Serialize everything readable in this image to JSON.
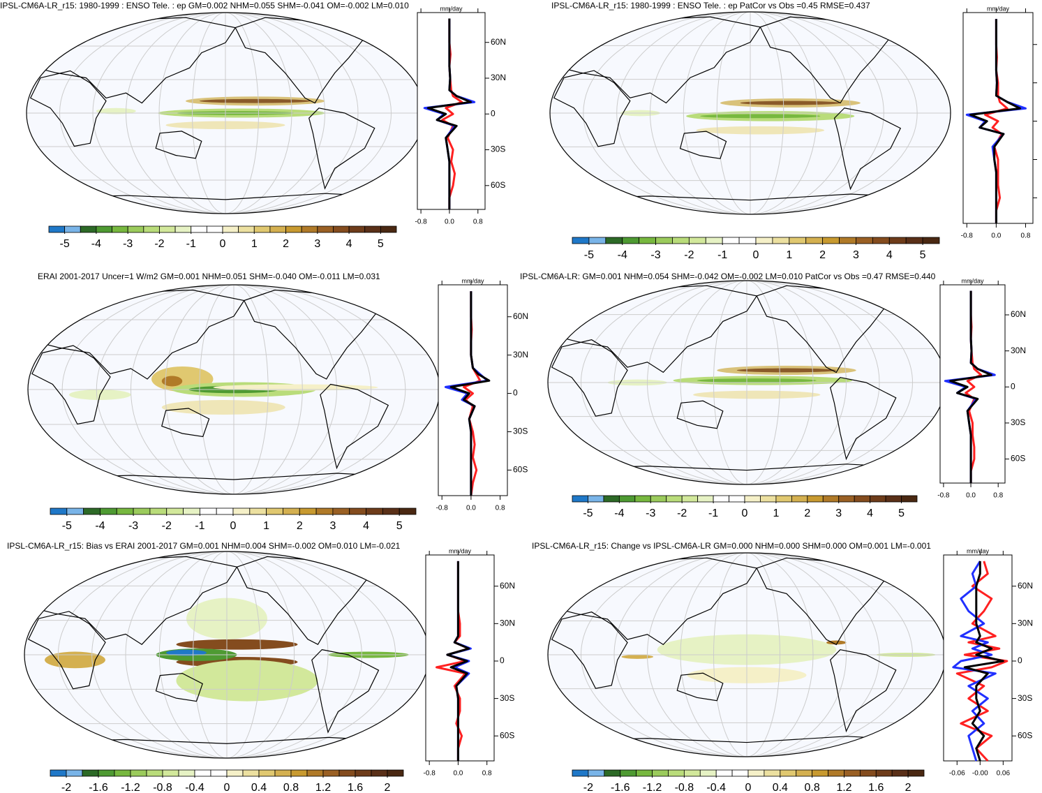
{
  "chart_data": [
    {
      "type": "map_zonal",
      "title": "IPSL-CM6A-LR_r15: 1980-1999 : ENSO Tele. : ep GM=0.002 NHM=0.055 SHM=-0.041 OM=-0.002 LM=0.010",
      "units": "mm/day",
      "colorbar": {
        "colors": [
          "#1f78c8",
          "#79b4e8",
          "#2d6a27",
          "#4e9a32",
          "#77b83f",
          "#9bcb5c",
          "#b9dc7a",
          "#d2e89b",
          "#e6f2c4",
          "#ffffff",
          "#ffffff",
          "#f5f0c8",
          "#ece0a0",
          "#e0c870",
          "#d4b050",
          "#c89a30",
          "#b07a28",
          "#9a6024",
          "#844c1e",
          "#6e3c1a",
          "#5a3018",
          "#4a2812"
        ],
        "ticks": [
          -5,
          -4,
          -3,
          -2,
          -1,
          0,
          1,
          2,
          3,
          4,
          5
        ]
      },
      "lat": [
        -80,
        -70,
        -60,
        -50,
        -40,
        -30,
        -20,
        -10,
        -5,
        0,
        5,
        10,
        15,
        20,
        30,
        40,
        50,
        60,
        70,
        80
      ],
      "series": [
        {
          "color": "#ff2020",
          "values": [
            0,
            0,
            0.1,
            0.15,
            0.05,
            0.1,
            -0.05,
            0.1,
            -0.2,
            0.1,
            -0.1,
            0.35,
            0.1,
            0.05,
            0.02,
            0,
            0.03,
            0,
            0,
            0
          ]
        },
        {
          "color": "#2030ff",
          "values": [
            0,
            0,
            0,
            0,
            0,
            -0.05,
            -0.1,
            0.15,
            -0.35,
            -0.15,
            -0.7,
            0.7,
            0.2,
            0,
            0.02,
            0,
            0,
            0,
            0,
            0
          ]
        },
        {
          "color": "#000000",
          "values": [
            0,
            0,
            0,
            0,
            0,
            -0.05,
            -0.1,
            0.2,
            -0.35,
            -0.1,
            -0.6,
            0.6,
            0.2,
            0,
            0.02,
            0,
            0,
            0,
            0,
            0
          ]
        }
      ],
      "xlim": [
        -0.9,
        1.0
      ],
      "xticks": [
        -0.8,
        {
          "value": 0,
          "label": "0.0"
        },
        0.8
      ],
      "ylim": [
        -80,
        85
      ],
      "yticks": [
        {
          "value": 60,
          "label": "60N"
        },
        {
          "value": 30,
          "label": "30N"
        },
        0,
        {
          "value": -30,
          "label": "30S"
        },
        {
          "value": -60,
          "label": "60S"
        }
      ],
      "ytick_labels": true
    },
    {
      "type": "map_zonal",
      "title": "IPSL-CM6A-LR_r15: 1980-1999 : ENSO Tele. : ep PatCor vs Obs =0.45 RMSE=0.437",
      "units": "mm/day",
      "colorbar": {
        "colors": [
          "#1f78c8",
          "#79b4e8",
          "#2d6a27",
          "#4e9a32",
          "#77b83f",
          "#9bcb5c",
          "#b9dc7a",
          "#d2e89b",
          "#e6f2c4",
          "#ffffff",
          "#ffffff",
          "#f5f0c8",
          "#ece0a0",
          "#e0c870",
          "#d4b050",
          "#c89a30",
          "#b07a28",
          "#9a6024",
          "#844c1e",
          "#6e3c1a",
          "#5a3018",
          "#4a2812"
        ],
        "ticks": [
          -5,
          -4,
          -3,
          -2,
          -1,
          0,
          1,
          2,
          3,
          4,
          5
        ]
      },
      "lat": [
        -80,
        -70,
        -60,
        -50,
        -40,
        -30,
        -20,
        -10,
        -5,
        0,
        5,
        10,
        15,
        20,
        30,
        40,
        50,
        60,
        70,
        80
      ],
      "series": [
        {
          "color": "#ff2020",
          "values": [
            0,
            0,
            0.1,
            0.05,
            0.05,
            0.05,
            -0.05,
            0.15,
            -0.1,
            0.05,
            -0.3,
            0.3,
            0.1,
            0.05,
            0.05,
            0,
            0.02,
            0,
            0,
            0
          ]
        },
        {
          "color": "#2030ff",
          "values": [
            0,
            0,
            0,
            0,
            0,
            -0.05,
            -0.1,
            0.2,
            -0.45,
            -0.3,
            -0.8,
            0.8,
            0.3,
            0,
            0.02,
            0,
            0,
            0,
            0,
            0
          ]
        },
        {
          "color": "#000000",
          "values": [
            0,
            0,
            0,
            0,
            0,
            -0.05,
            -0.05,
            0.2,
            -0.45,
            -0.25,
            -0.7,
            0.65,
            0.3,
            0,
            0.02,
            0,
            0,
            0,
            0,
            0
          ]
        }
      ],
      "xlim": [
        -0.9,
        1.0
      ],
      "xticks": [
        -0.8,
        {
          "value": 0,
          "label": "0.0"
        },
        0.8
      ],
      "ylim": [
        -80,
        85
      ],
      "yticks": [
        60,
        30,
        0,
        -30,
        -60
      ],
      "ytick_labels": false
    },
    {
      "type": "map_zonal",
      "title": "ERAI 2001-2017 Uncer=1 W/m2 GM=0.001 NHM=0.051 SHM=-0.040 OM=-0.011 LM=0.031",
      "units": "mm/day",
      "colorbar": {
        "colors": [
          "#1f78c8",
          "#79b4e8",
          "#2d6a27",
          "#4e9a32",
          "#77b83f",
          "#9bcb5c",
          "#b9dc7a",
          "#d2e89b",
          "#e6f2c4",
          "#ffffff",
          "#ffffff",
          "#f5f0c8",
          "#ece0a0",
          "#e0c870",
          "#d4b050",
          "#c89a30",
          "#b07a28",
          "#9a6024",
          "#844c1e",
          "#6e3c1a",
          "#5a3018",
          "#4a2812"
        ],
        "ticks": [
          -5,
          -4,
          -3,
          -2,
          -1,
          0,
          1,
          2,
          3,
          4,
          5
        ]
      },
      "lat": [
        -80,
        -70,
        -60,
        -50,
        -40,
        -30,
        -20,
        -10,
        -5,
        0,
        5,
        10,
        15,
        20,
        30,
        40,
        50,
        60,
        70,
        80
      ],
      "series": [
        {
          "color": "#ff2020",
          "values": [
            0,
            0.05,
            0.15,
            0.05,
            0.1,
            0.05,
            -0.05,
            0.05,
            -0.15,
            0.05,
            -0.2,
            0.25,
            0.15,
            0.05,
            0,
            0,
            0.02,
            0,
            0,
            0
          ]
        },
        {
          "color": "#2030ff",
          "values": [
            0,
            0,
            0,
            0,
            0,
            0,
            -0.05,
            0.1,
            -0.25,
            -0.1,
            -0.7,
            0.45,
            0.25,
            0.05,
            0,
            0,
            0,
            0,
            0,
            0
          ]
        },
        {
          "color": "#000000",
          "values": [
            0,
            0,
            0,
            0,
            0,
            0,
            -0.05,
            0.1,
            -0.2,
            -0.05,
            -0.55,
            0.5,
            0.2,
            0.05,
            0,
            0,
            0,
            0,
            0,
            0
          ]
        }
      ],
      "xlim": [
        -0.9,
        1.0
      ],
      "xticks": [
        -0.8,
        {
          "value": 0,
          "label": "0.0"
        },
        0.8
      ],
      "ylim": [
        -80,
        85
      ],
      "yticks": [
        {
          "value": 60,
          "label": "60N"
        },
        {
          "value": 30,
          "label": "30N"
        },
        0,
        {
          "value": -30,
          "label": "30S"
        },
        {
          "value": -60,
          "label": "60S"
        }
      ],
      "ytick_labels": true
    },
    {
      "type": "map_zonal",
      "title": "IPSL-CM6A-LR: GM=0.001 NHM=0.054 SHM=-0.042 OM=-0.002 LM=0.010 PatCor vs Obs =0.47 RMSE=0.440",
      "units": "mm/day",
      "colorbar": {
        "colors": [
          "#1f78c8",
          "#79b4e8",
          "#2d6a27",
          "#4e9a32",
          "#77b83f",
          "#9bcb5c",
          "#b9dc7a",
          "#d2e89b",
          "#e6f2c4",
          "#ffffff",
          "#ffffff",
          "#f5f0c8",
          "#ece0a0",
          "#e0c870",
          "#d4b050",
          "#c89a30",
          "#b07a28",
          "#9a6024",
          "#844c1e",
          "#6e3c1a",
          "#5a3018",
          "#4a2812"
        ],
        "ticks": [
          -5,
          -4,
          -3,
          -2,
          -1,
          0,
          1,
          2,
          3,
          4,
          5
        ]
      },
      "lat": [
        -80,
        -70,
        -60,
        -50,
        -40,
        -30,
        -20,
        -10,
        -5,
        0,
        5,
        10,
        15,
        20,
        30,
        40,
        50,
        60,
        70,
        80
      ],
      "series": [
        {
          "color": "#ff2020",
          "values": [
            0,
            0,
            0.1,
            0.1,
            0.05,
            0.05,
            -0.05,
            0.1,
            -0.15,
            0.1,
            -0.1,
            0.3,
            0.1,
            0.05,
            0.02,
            0,
            0.02,
            0,
            0,
            0
          ]
        },
        {
          "color": "#2030ff",
          "values": [
            0,
            0,
            0,
            0,
            0,
            -0.05,
            -0.1,
            0.15,
            -0.4,
            -0.15,
            -0.75,
            0.7,
            0.2,
            0,
            0.02,
            0,
            0,
            0,
            0,
            0
          ]
        },
        {
          "color": "#000000",
          "values": [
            0,
            0,
            0,
            0,
            0,
            -0.05,
            -0.1,
            0.2,
            -0.4,
            -0.1,
            -0.6,
            0.6,
            0.2,
            0,
            0.02,
            0,
            0,
            0,
            0,
            0
          ]
        }
      ],
      "xlim": [
        -0.9,
        1.0
      ],
      "xticks": [
        -0.8,
        {
          "value": 0,
          "label": "0.0"
        },
        0.8
      ],
      "ylim": [
        -80,
        85
      ],
      "yticks": [
        {
          "value": 60,
          "label": "60N"
        },
        {
          "value": 30,
          "label": "30N"
        },
        0,
        {
          "value": -30,
          "label": "30S"
        },
        {
          "value": -60,
          "label": "60S"
        }
      ],
      "ytick_labels": true
    },
    {
      "type": "map_zonal",
      "title": "IPSL-CM6A-LR_r15: Bias vs ERAI 2001-2017 GM=0.001 NHM=0.004 SHM=-0.002 OM=0.010 LM=-0.021",
      "units": "mm/day",
      "colorbar": {
        "colors": [
          "#1f78c8",
          "#79b4e8",
          "#2d6a27",
          "#4e9a32",
          "#77b83f",
          "#9bcb5c",
          "#b9dc7a",
          "#d2e89b",
          "#e6f2c4",
          "#ffffff",
          "#ffffff",
          "#f5f0c8",
          "#ece0a0",
          "#e0c870",
          "#d4b050",
          "#c89a30",
          "#b07a28",
          "#9a6024",
          "#844c1e",
          "#6e3c1a",
          "#5a3018",
          "#4a2812"
        ],
        "ticks": [
          -2,
          -1.6,
          -1.2,
          -0.8,
          -0.4,
          0,
          0.4,
          0.8,
          1.2,
          1.6,
          2
        ]
      },
      "lat": [
        -80,
        -70,
        -60,
        -50,
        -40,
        -30,
        -20,
        -10,
        -5,
        0,
        5,
        10,
        15,
        20,
        30,
        40,
        50,
        60,
        70,
        80
      ],
      "series": [
        {
          "color": "#ff2020",
          "values": [
            0,
            0,
            0.1,
            -0.05,
            0.05,
            0.05,
            -0.1,
            0.2,
            -0.6,
            0.2,
            -0.3,
            0.3,
            -0.1,
            0.05,
            0.05,
            0,
            0,
            0,
            0,
            0
          ]
        },
        {
          "color": "#2030ff",
          "values": [
            0,
            0,
            0,
            0,
            0,
            0,
            -0.05,
            0.3,
            -0.1,
            0.3,
            -0.3,
            0.35,
            -0.1,
            0,
            0,
            0,
            0,
            0,
            0,
            0
          ]
        },
        {
          "color": "#000000",
          "values": [
            0,
            0,
            0,
            0,
            0,
            0,
            -0.05,
            0.25,
            -0.2,
            0.25,
            -0.3,
            0.3,
            -0.1,
            0,
            0,
            0,
            0,
            0,
            0,
            0
          ]
        }
      ],
      "xlim": [
        -0.9,
        1.0
      ],
      "xticks": [
        -0.8,
        {
          "value": 0,
          "label": "0.0"
        },
        0.8
      ],
      "ylim": [
        -80,
        85
      ],
      "yticks": [
        {
          "value": 60,
          "label": "60N"
        },
        {
          "value": 30,
          "label": "30N"
        },
        0,
        {
          "value": -30,
          "label": "30S"
        },
        {
          "value": -60,
          "label": "60S"
        }
      ],
      "ytick_labels": true
    },
    {
      "type": "map_zonal",
      "title": "IPSL-CM6A-LR_r15: Change vs IPSL-CM6A-LR GM=0.000 NHM=0.000 SHM=0.000 OM=0.001 LM=-0.001",
      "units": "mm/day",
      "colorbar": {
        "colors": [
          "#1f78c8",
          "#79b4e8",
          "#2d6a27",
          "#4e9a32",
          "#77b83f",
          "#9bcb5c",
          "#b9dc7a",
          "#d2e89b",
          "#e6f2c4",
          "#ffffff",
          "#ffffff",
          "#f5f0c8",
          "#ece0a0",
          "#e0c870",
          "#d4b050",
          "#c89a30",
          "#b07a28",
          "#9a6024",
          "#844c1e",
          "#6e3c1a",
          "#5a3018",
          "#4a2812"
        ],
        "ticks": [
          -2,
          -1.6,
          -1.2,
          -0.8,
          -0.4,
          0,
          0.4,
          0.8,
          1.2,
          1.6,
          2
        ]
      },
      "lat": [
        -80,
        -70,
        -60,
        -50,
        -40,
        -30,
        -20,
        -10,
        -5,
        0,
        5,
        10,
        15,
        20,
        30,
        40,
        50,
        60,
        70,
        80
      ],
      "series": [
        {
          "color": "#ff2020",
          "values": [
            0.02,
            -0.01,
            0.03,
            -0.05,
            0.02,
            -0.03,
            0.01,
            -0.06,
            0.03,
            0.07,
            -0.04,
            0.05,
            -0.03,
            0.04,
            -0.02,
            0.01,
            0.03,
            -0.02,
            0.02,
            0.01
          ]
        },
        {
          "color": "#2030ff",
          "values": [
            -0.01,
            -0.02,
            -0.03,
            0.01,
            -0.02,
            0.02,
            -0.03,
            0.04,
            -0.07,
            -0.05,
            0.03,
            -0.02,
            0.02,
            -0.05,
            0.01,
            -0.03,
            -0.05,
            -0.01,
            -0.02,
            0
          ]
        },
        {
          "color": "#000000",
          "values": [
            0,
            -0.01,
            0.01,
            -0.02,
            0,
            -0.01,
            -0.01,
            0.02,
            -0.04,
            0.06,
            -0.01,
            0.03,
            -0.01,
            0,
            -0.01,
            -0.01,
            -0.01,
            -0.01,
            0,
            0
          ]
        }
      ],
      "xlim": [
        -0.095,
        0.083
      ],
      "xticks": [
        -0.06,
        {
          "value": 0,
          "label": "-0.00"
        },
        0.06
      ],
      "ylim": [
        -80,
        85
      ],
      "yticks": [
        {
          "value": 60,
          "label": "60N"
        },
        {
          "value": 30,
          "label": "30N"
        },
        0,
        {
          "value": -30,
          "label": "30S"
        },
        {
          "value": -60,
          "label": "60S"
        }
      ],
      "ytick_labels": true
    }
  ]
}
